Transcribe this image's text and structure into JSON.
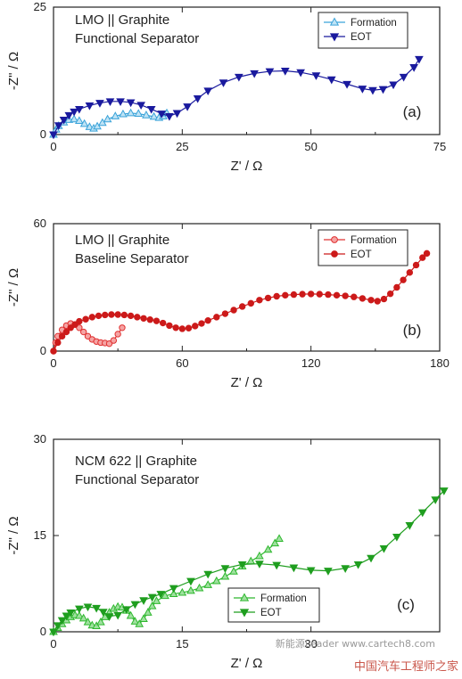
{
  "watermark": {
    "line1": "中国汽车工程师之家",
    "line2": "www.cartech8.com",
    "line3": "新能源Leader"
  },
  "chart_data": [
    {
      "type": "line",
      "panel_label": "(a)",
      "annotation": [
        "LMO || Graphite",
        "Functional Separator"
      ],
      "xlabel": "Z' / Ω",
      "ylabel": "-Z\" / Ω",
      "xlim": [
        0,
        75
      ],
      "ylim": [
        0,
        25
      ],
      "xticks": [
        0,
        25,
        50,
        75
      ],
      "yticks": [
        0,
        25
      ],
      "legend_position": "top-right",
      "series": [
        {
          "name": "Formation",
          "color": "#3aa3d9",
          "marker": "triangle-up",
          "fill": "#bfe3f5",
          "x": [
            0,
            0.5,
            1,
            2,
            3,
            4,
            5,
            6,
            7,
            7.8,
            8.5,
            9.5,
            10.5,
            12,
            13.5,
            15,
            16.5,
            18,
            19.5,
            20.5,
            21.3,
            22
          ],
          "y": [
            0,
            1.0,
            1.7,
            2.4,
            2.9,
            3.0,
            2.7,
            2.1,
            1.5,
            1.2,
            1.6,
            2.3,
            3.0,
            3.6,
            4.0,
            4.2,
            4.1,
            3.8,
            3.5,
            3.3,
            3.6,
            4.2
          ]
        },
        {
          "name": "EOT",
          "color": "#1a1a9e",
          "marker": "triangle-down",
          "fill": "#1a1a9e",
          "x": [
            0,
            1,
            2,
            3,
            4,
            5,
            7,
            9,
            11,
            13,
            15,
            17,
            19,
            21,
            22.5,
            24,
            26,
            28,
            30,
            33,
            36,
            39,
            42,
            45,
            48,
            51,
            54,
            57,
            60,
            62,
            64,
            66,
            68,
            70,
            71
          ],
          "y": [
            0,
            1.8,
            2.9,
            3.8,
            4.5,
            5.0,
            5.7,
            6.2,
            6.5,
            6.5,
            6.3,
            5.8,
            5.0,
            4.1,
            3.6,
            4.2,
            5.5,
            7.1,
            8.6,
            10.2,
            11.3,
            12.0,
            12.4,
            12.5,
            12.2,
            11.6,
            10.8,
            9.9,
            9.0,
            8.7,
            8.9,
            9.8,
            11.3,
            13.2,
            14.8
          ]
        }
      ]
    },
    {
      "type": "line",
      "panel_label": "(b)",
      "annotation": [
        "LMO || Graphite",
        "Baseline Separator"
      ],
      "xlabel": "Z' / Ω",
      "ylabel": "-Z\" / Ω",
      "xlim": [
        0,
        180
      ],
      "ylim": [
        0,
        60
      ],
      "xticks": [
        0,
        60,
        120,
        180
      ],
      "yticks": [
        0,
        60
      ],
      "legend_position": "top-right",
      "series": [
        {
          "name": "Formation",
          "color": "#e03030",
          "marker": "circle",
          "fill": "#f5a3a3",
          "x": [
            0,
            1,
            2,
            4,
            6,
            8,
            10,
            12,
            14,
            16,
            18,
            20,
            22,
            24,
            26,
            28,
            30,
            32
          ],
          "y": [
            0,
            4,
            7,
            10,
            12,
            13,
            12.5,
            11,
            9,
            7,
            5.5,
            4.5,
            4,
            3.8,
            3.5,
            5,
            8,
            11
          ]
        },
        {
          "name": "EOT",
          "color": "#cc1a1a",
          "marker": "circle",
          "fill": "#cc1a1a",
          "x": [
            0,
            2,
            4,
            6,
            8,
            10,
            12,
            15,
            18,
            21,
            24,
            27,
            30,
            33,
            36,
            39,
            42,
            45,
            48,
            51,
            54,
            57,
            60,
            63,
            66,
            69,
            72,
            76,
            80,
            84,
            88,
            92,
            96,
            100,
            104,
            108,
            112,
            116,
            120,
            124,
            128,
            132,
            136,
            140,
            144,
            148,
            151,
            154,
            157,
            160,
            163,
            166,
            169,
            172,
            174
          ],
          "y": [
            0,
            4,
            7,
            9,
            11,
            12.5,
            14,
            15,
            16,
            16.6,
            17,
            17.2,
            17.2,
            17,
            16.6,
            16,
            15.4,
            14.8,
            14.2,
            13.2,
            12,
            11,
            10.5,
            10.8,
            11.8,
            13,
            14.4,
            16,
            17.6,
            19.3,
            21,
            22.5,
            24,
            25,
            25.8,
            26.3,
            26.6,
            26.8,
            26.9,
            26.8,
            26.6,
            26.3,
            26,
            25.5,
            24.8,
            24,
            23.5,
            24.5,
            27,
            30,
            33.5,
            37,
            40.5,
            44,
            46
          ]
        }
      ]
    },
    {
      "type": "line",
      "panel_label": "(c)",
      "annotation": [
        "NCM 622 || Graphite",
        "Functional Separator"
      ],
      "xlabel": "Z' / Ω",
      "ylabel": "-Z\" / Ω",
      "xlim": [
        0,
        45
      ],
      "ylim": [
        0,
        30
      ],
      "xticks": [
        0,
        15,
        30
      ],
      "yticks": [
        0,
        15,
        30
      ],
      "legend_position": "bottom-center",
      "series": [
        {
          "name": "Formation",
          "color": "#2eb82e",
          "marker": "triangle-up",
          "fill": "#9fe09f",
          "x": [
            0,
            0.5,
            1,
            1.5,
            2,
            2.5,
            3,
            3.5,
            4,
            4.5,
            5,
            5.5,
            6,
            6.5,
            7,
            7.5,
            8,
            8.5,
            9,
            9.5,
            10,
            10.5,
            11,
            11.5,
            12,
            13,
            14,
            15,
            16,
            17,
            18,
            19,
            20,
            21,
            22,
            23,
            24,
            25,
            25.8,
            26.3
          ],
          "y": [
            0,
            0.6,
            1.2,
            1.8,
            2.3,
            2.6,
            2.5,
            2.1,
            1.5,
            1.0,
            0.9,
            1.5,
            2.3,
            3.0,
            3.6,
            3.9,
            3.8,
            3.3,
            2.5,
            1.6,
            1.2,
            2.0,
            3.0,
            4.0,
            4.8,
            5.6,
            5.9,
            6.1,
            6.4,
            6.8,
            7.3,
            7.9,
            8.6,
            9.4,
            10.2,
            11.0,
            11.8,
            12.8,
            13.8,
            14.5
          ]
        },
        {
          "name": "EOT",
          "color": "#1f9e1f",
          "marker": "triangle-down",
          "fill": "#1f9e1f",
          "x": [
            0,
            0.5,
            1,
            1.5,
            2,
            3,
            4,
            5,
            5.8,
            6.5,
            7.5,
            8.5,
            9.5,
            10.5,
            11.5,
            12.5,
            14,
            16,
            18,
            20,
            22,
            24,
            26,
            28,
            30,
            32,
            34,
            35.5,
            37,
            38.5,
            40,
            41.5,
            43,
            44.5,
            45.5
          ],
          "y": [
            0,
            1.0,
            1.8,
            2.5,
            3.0,
            3.6,
            3.9,
            3.7,
            3.1,
            2.4,
            2.6,
            3.5,
            4.3,
            4.9,
            5.4,
            5.9,
            6.8,
            7.9,
            9.0,
            9.9,
            10.5,
            10.6,
            10.4,
            10.0,
            9.6,
            9.5,
            9.9,
            10.5,
            11.5,
            13.0,
            14.8,
            16.6,
            18.6,
            20.6,
            22.0
          ]
        }
      ]
    }
  ]
}
